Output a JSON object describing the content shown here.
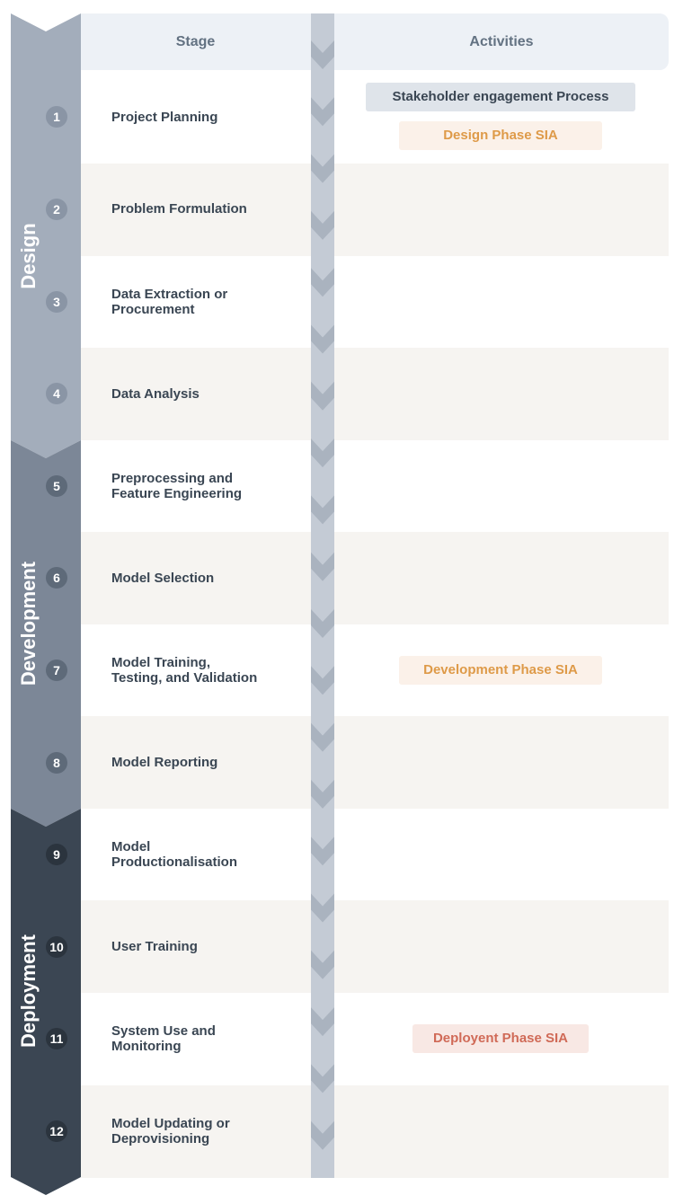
{
  "headers": {
    "stage": "Stage",
    "activities": "Activities"
  },
  "phases": [
    {
      "name": "Design",
      "color": "#a3adbb",
      "stages": [
        1,
        4
      ]
    },
    {
      "name": "Development",
      "color": "#7c8797",
      "stages": [
        5,
        8
      ]
    },
    {
      "name": "Deployment",
      "color": "#3b4653",
      "stages": [
        9,
        12
      ]
    }
  ],
  "stages": [
    {
      "number": "1",
      "label": "Project Planning"
    },
    {
      "number": "2",
      "label": "Problem Formulation"
    },
    {
      "number": "3",
      "label": "Data Extraction or\nProcurement"
    },
    {
      "number": "4",
      "label": "Data Analysis"
    },
    {
      "number": "5",
      "label": "Preprocessing and\nFeature Engineering"
    },
    {
      "number": "6",
      "label": "Model Selection"
    },
    {
      "number": "7",
      "label": "Model Training,\nTesting, and Validation"
    },
    {
      "number": "8",
      "label": "Model Reporting"
    },
    {
      "number": "9",
      "label": "Model\nProductionalisation"
    },
    {
      "number": "10",
      "label": "User Training"
    },
    {
      "number": "11",
      "label": "System Use and\nMonitoring"
    },
    {
      "number": "12",
      "label": "Model Updating or\nDeprovisioning"
    }
  ],
  "activities": {
    "stakeholder": "Stakeholder engagement Process",
    "design_sia": "Design Phase SIA",
    "development_sia": "Development Phase SIA",
    "deployment_sia": "Deployent Phase SIA"
  },
  "colors": {
    "header_bg": "#edf1f6",
    "header_text": "#637282",
    "alt_row": "#f6f4f1",
    "stage_text": "#3a4653",
    "chevron_track": "#c4cbd5",
    "chevron_mark": "#aab3bf",
    "stakeholder_bg": "#dfe4ea",
    "stakeholder_text": "#3a4653",
    "design_sia_bg": "#fbf1e9",
    "design_sia_text": "#de9a48",
    "deploy_sia_bg": "#f8e8e4",
    "deploy_sia_text": "#d06a57"
  }
}
